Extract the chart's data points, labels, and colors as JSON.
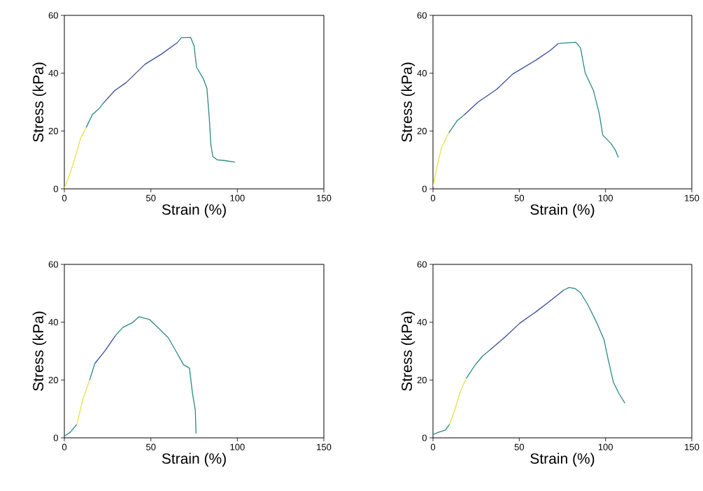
{
  "chart_data": [
    {
      "type": "line",
      "xlabel": "Strain (%)",
      "ylabel": "Stress (kPa)",
      "xlim": [
        0,
        150
      ],
      "ylim": [
        0,
        60
      ],
      "xticks": [
        0,
        50,
        100,
        150
      ],
      "yticks": [
        0,
        20,
        40,
        60
      ],
      "grid": false,
      "marker": "none",
      "line_style": "solid",
      "series": [
        {
          "color": "#e6e04a",
          "x": [
            0,
            3.4,
            6.8,
            9.5,
            12.6
          ],
          "values": [
            0.2,
            5.5,
            12,
            17.7,
            21.2
          ]
        },
        {
          "color": "#2a8a82",
          "x": [
            12.6,
            16.2,
            20.3,
            22.3
          ],
          "values": [
            21.2,
            25.7,
            27.9,
            29.5
          ]
        },
        {
          "color": "#3b4c9b",
          "x": [
            22.3,
            29.1,
            35.8,
            46.6,
            56.1,
            65.5
          ],
          "values": [
            29.5,
            34,
            36.8,
            43.1,
            46.6,
            50.7
          ]
        },
        {
          "color": "#2a8a82",
          "x": [
            65.5,
            67.6,
            73,
            75,
            76.4,
            80.4,
            82.4,
            83.8,
            84.7,
            85.8,
            88.5,
            92.6,
            98.6
          ],
          "values": [
            50.7,
            52.3,
            52.4,
            49.4,
            42.1,
            38,
            34.8,
            24.2,
            15.3,
            11.2,
            10,
            9.8,
            9.2
          ]
        }
      ]
    },
    {
      "type": "line",
      "xlabel": "Strain (%)",
      "ylabel": "Stress (kPa)",
      "xlim": [
        0,
        150
      ],
      "ylim": [
        0,
        60
      ],
      "xticks": [
        0,
        50,
        100,
        150
      ],
      "yticks": [
        0,
        20,
        40,
        60
      ],
      "grid": false,
      "marker": "none",
      "line_style": "solid",
      "series": [
        {
          "color": "#e6e04a",
          "x": [
            0,
            2.4,
            5.1,
            9.2
          ],
          "values": [
            0.7,
            8,
            14.5,
            19.4
          ]
        },
        {
          "color": "#2a8a82",
          "x": [
            9.2,
            13.9,
            18
          ],
          "values": [
            19.4,
            23.5,
            25.5
          ]
        },
        {
          "color": "#3b4c9b",
          "x": [
            18,
            26.1,
            36.9,
            46.2,
            59.9,
            68,
            72.7
          ],
          "values": [
            25.5,
            30,
            34.4,
            39.7,
            44.6,
            47.9,
            50.3
          ]
        },
        {
          "color": "#2a8a82",
          "x": [
            72.7,
            82.8,
            85.5,
            88.2,
            93,
            96.4,
            98.4,
            103.1,
            105.8,
            107.4
          ],
          "values": [
            50.3,
            50.7,
            48.7,
            40.1,
            34,
            25.9,
            18.6,
            15.7,
            13.3,
            10.8
          ]
        }
      ]
    },
    {
      "type": "line",
      "xlabel": "Strain (%)",
      "ylabel": "Stress (kPa)",
      "xlim": [
        0,
        150
      ],
      "ylim": [
        0,
        60
      ],
      "xticks": [
        0,
        50,
        100,
        150
      ],
      "yticks": [
        0,
        20,
        40,
        60
      ],
      "grid": false,
      "marker": "none",
      "line_style": "solid",
      "series": [
        {
          "color": "#2a8a82",
          "x": [
            0,
            3.4,
            7.2
          ],
          "values": [
            0.6,
            1.9,
            4.7
          ]
        },
        {
          "color": "#e6e04a",
          "x": [
            7.2,
            10.8,
            14.6
          ],
          "values": [
            4.7,
            13.6,
            20
          ]
        },
        {
          "color": "#2a8a82",
          "x": [
            14.6,
            17.6
          ],
          "values": [
            20,
            25.7
          ]
        },
        {
          "color": "#3b4c9b",
          "x": [
            17.6,
            23.6,
            29.6
          ],
          "values": [
            25.7,
            30.2,
            35.4
          ]
        },
        {
          "color": "#2a8a82",
          "x": [
            29.6,
            33.8,
            39.5,
            43.2,
            49.3,
            54.7,
            60.1,
            65.5,
            68.9,
            72.3,
            74.1,
            75.7,
            76.1
          ],
          "values": [
            35.4,
            38.2,
            39.9,
            41.9,
            40.9,
            37.8,
            34.6,
            28.9,
            25.3,
            24.1,
            15.2,
            9.5,
            1.5
          ]
        }
      ]
    },
    {
      "type": "line",
      "xlabel": "Strain (%)",
      "ylabel": "Stress (kPa)",
      "xlim": [
        0,
        150
      ],
      "ylim": [
        0,
        60
      ],
      "xticks": [
        0,
        50,
        100,
        150
      ],
      "yticks": [
        0,
        20,
        40,
        60
      ],
      "grid": false,
      "marker": "none",
      "line_style": "solid",
      "series": [
        {
          "color": "#2a8a82",
          "x": [
            0,
            3.1,
            7.2,
            9.6
          ],
          "values": [
            1.1,
            1.9,
            2.7,
            4.7
          ]
        },
        {
          "color": "#e6e04a",
          "x": [
            9.6,
            12.6,
            15.9,
            19.3
          ],
          "values": [
            4.7,
            9.6,
            16.1,
            20.6
          ]
        },
        {
          "color": "#2a8a82",
          "x": [
            19.3,
            24.7,
            28.8,
            32.8
          ],
          "values": [
            20.6,
            25.4,
            28.3,
            30.3
          ]
        },
        {
          "color": "#3b4c9b",
          "x": [
            32.8,
            40.9,
            50.4,
            59.9,
            68,
            75.8
          ],
          "values": [
            30.3,
            34.4,
            39.7,
            43.7,
            47.4,
            51.1
          ]
        },
        {
          "color": "#2a8a82",
          "x": [
            75.8,
            78.8,
            82.2,
            85.5,
            89.6,
            95,
            99.1,
            101.1,
            104.5,
            107.8,
            111.2
          ],
          "values": [
            51.1,
            52,
            51.7,
            50.2,
            46.2,
            39.7,
            34,
            28.3,
            19.3,
            15.3,
            12
          ]
        }
      ]
    }
  ]
}
